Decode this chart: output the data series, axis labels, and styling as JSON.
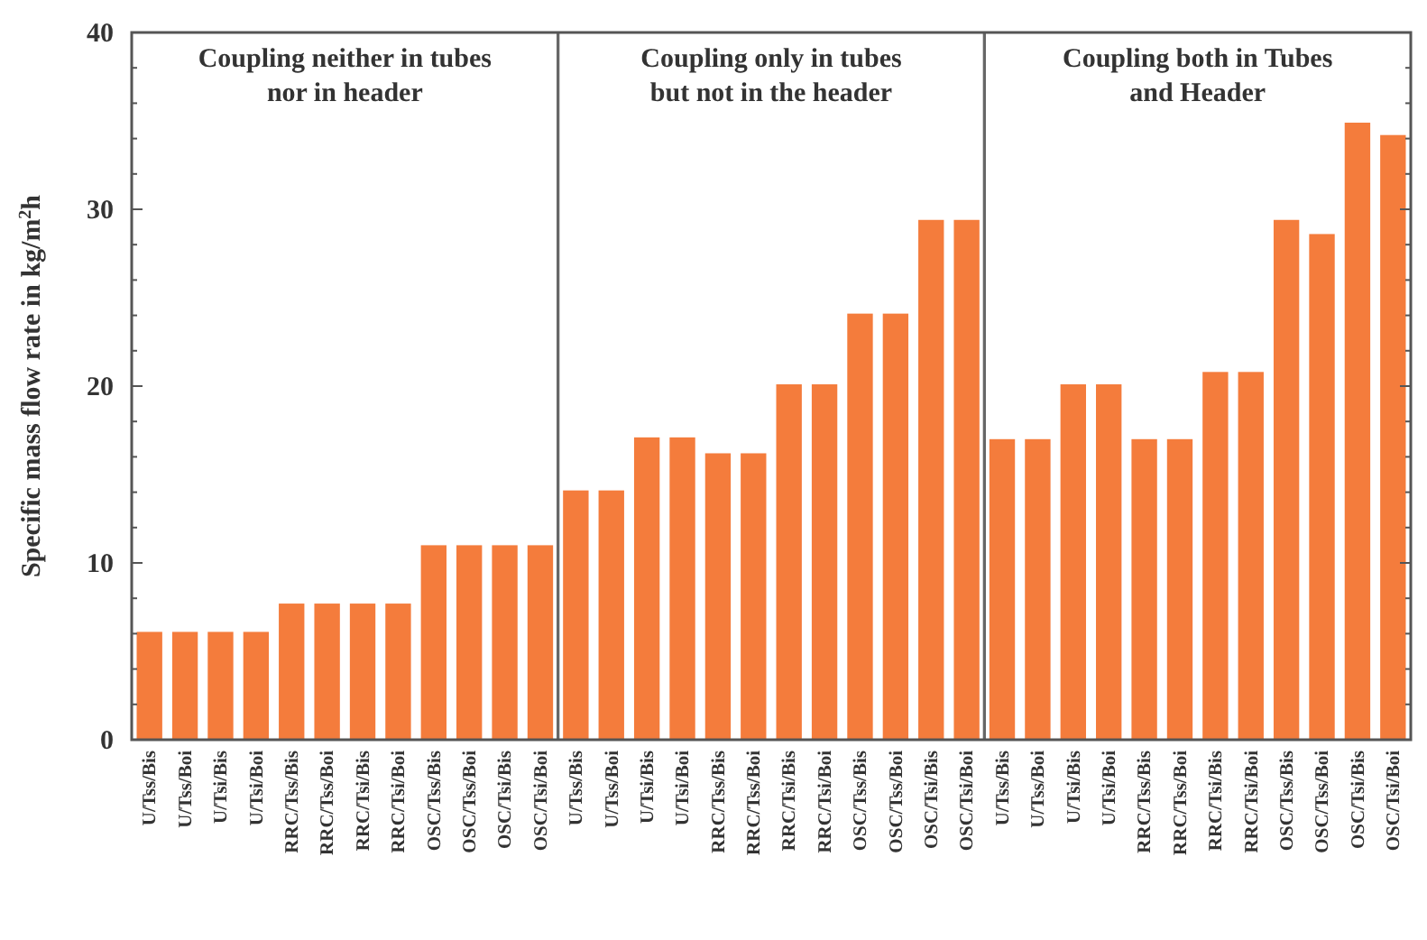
{
  "chart_data": {
    "type": "bar",
    "ylabel": "Specific mass flow rate in kg/m$^{2}$h",
    "categories": [
      "U/Tss/Bis",
      "U/Tss/Boi",
      "U/Tsi/Bis",
      "U/Tsi/Boi",
      "RRC/Tss/Bis",
      "RRC/Tss/Boi",
      "RRC/Tsi/Bis",
      "RRC/Tsi/Boi",
      "OSC/Tss/Bis",
      "OSC/Tss/Boi",
      "OSC/Tsi/Bis",
      "OSC/Tsi/Boi",
      "U/Tss/Bis",
      "U/Tss/Boi",
      "U/Tsi/Bis",
      "U/Tsi/Boi",
      "RRC/Tss/Bis",
      "RRC/Tss/Boi",
      "RRC/Tsi/Bis",
      "RRC/Tsi/Boi",
      "OSC/Tss/Bis",
      "OSC/Tss/Boi",
      "OSC/Tsi/Bis",
      "OSC/Tsi/Boi",
      "U/Tss/Bis",
      "U/Tss/Boi",
      "U/Tsi/Bis",
      "U/Tsi/Boi",
      "RRC/Tss/Bis",
      "RRC/Tss/Boi",
      "RRC/Tsi/Bis",
      "RRC/Tsi/Boi",
      "OSC/Tss/Bis",
      "OSC/Tss/Boi",
      "OSC/Tsi/Bis",
      "OSC/Tsi/Boi"
    ],
    "values": [
      6.1,
      6.1,
      6.1,
      6.1,
      7.7,
      7.7,
      7.7,
      7.7,
      11,
      11,
      11,
      11,
      14.1,
      14.1,
      17.1,
      17.1,
      16.2,
      16.2,
      20.1,
      20.1,
      24.1,
      24.1,
      29.4,
      29.4,
      17,
      17,
      20.1,
      20.1,
      17,
      17,
      20.8,
      20.8,
      29.4,
      28.6,
      34.9,
      34.2
    ],
    "color": "#f47c3c",
    "ylim": [
      0,
      40
    ],
    "yticks": [
      0,
      {
        "value": 2,
        "label": null
      },
      {
        "value": 4,
        "label": null
      },
      {
        "value": 6,
        "label": null
      },
      {
        "value": 8,
        "label": null
      },
      10,
      {
        "value": 12,
        "label": null
      },
      {
        "value": 14,
        "label": null
      },
      {
        "value": 16,
        "label": null
      },
      {
        "value": 18,
        "label": null
      },
      20,
      {
        "value": 22,
        "label": null
      },
      {
        "value": 24,
        "label": null
      },
      {
        "value": 26,
        "label": null
      },
      {
        "value": 28,
        "label": null
      },
      30,
      {
        "value": 32,
        "label": null
      },
      {
        "value": 34,
        "label": null
      },
      {
        "value": 36,
        "label": null
      },
      {
        "value": 38,
        "label": null
      },
      40
    ],
    "annotations": [
      "Coupling neither in tubes\nnor in header",
      "Coupling only in tubes\nbut not in the header",
      "Coupling both in Tubes\nand Header"
    ],
    "grid": false
  }
}
